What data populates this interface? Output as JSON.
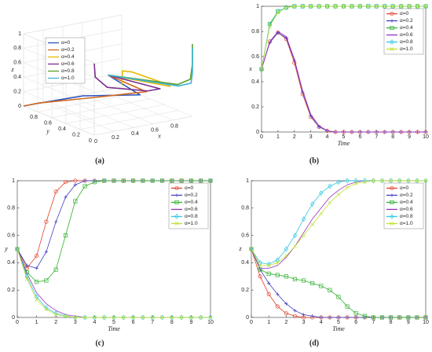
{
  "chart_data": [
    {
      "type": "line3d",
      "label": "(a)",
      "xlabel": "x",
      "ylabel": "y",
      "zlabel": "z",
      "xlim": [
        0,
        1
      ],
      "ylim": [
        0,
        1
      ],
      "zlim": [
        0,
        1
      ],
      "xticks": [
        0,
        0.2,
        0.4,
        0.6,
        0.8
      ],
      "yticks": [
        0,
        0.2,
        0.4,
        0.6,
        0.8
      ],
      "zticks": [
        0,
        0.2,
        0.4,
        0.6,
        0.8,
        1
      ],
      "grid": true,
      "legend": "upper left",
      "series": [
        {
          "name": "α=0",
          "color": "#2a52be",
          "x": [
            0.5,
            0.79,
            0.55,
            0.12,
            0.01,
            0
          ],
          "y": [
            0.5,
            0.45,
            0.92,
            1,
            1,
            1
          ],
          "z": [
            0.5,
            0.17,
            0.03,
            0,
            0,
            0
          ]
        },
        {
          "name": "α=0.2",
          "color": "#d2691e",
          "x": [
            0.5,
            0.79,
            0.57,
            0.13,
            0.01,
            0
          ],
          "y": [
            0.5,
            0.36,
            0.7,
            0.97,
            1,
            1
          ],
          "z": [
            0.5,
            0.25,
            0.1,
            0.02,
            0,
            0
          ]
        },
        {
          "name": "α=0.4",
          "color": "#e6b800",
          "x": [
            0.5,
            0.96,
            1,
            1,
            1,
            1
          ],
          "y": [
            0.5,
            0.26,
            0.35,
            0.85,
            0.99,
            1
          ],
          "z": [
            0.5,
            0.32,
            0.3,
            0.27,
            0.23,
            0.03
          ]
        },
        {
          "name": "α=0.6",
          "color": "#7b2d8e",
          "x": [
            0.5,
            0.8,
            0.58,
            0.14,
            0.01,
            0
          ],
          "y": [
            0.5,
            0.18,
            0.05,
            0.01,
            0,
            0
          ],
          "z": [
            0.5,
            0.36,
            0.44,
            0.62,
            0.8,
            0.99
          ]
        },
        {
          "name": "α=0.8",
          "color": "#5aa02c",
          "x": [
            0.5,
            0.96,
            1,
            1,
            1,
            1
          ],
          "y": [
            0.5,
            0.15,
            0.03,
            0,
            0,
            0
          ],
          "z": [
            0.5,
            0.39,
            0.5,
            0.72,
            0.91,
            1
          ]
        },
        {
          "name": "α=1.0",
          "color": "#3cb4d8",
          "x": [
            0.5,
            0.95,
            1,
            1,
            1,
            1
          ],
          "y": [
            0.5,
            0.13,
            0.02,
            0,
            0,
            0
          ],
          "z": [
            0.5,
            0.38,
            0.45,
            0.6,
            0.76,
            0.95
          ]
        }
      ]
    },
    {
      "type": "line",
      "label": "(b)",
      "xlabel": "Time",
      "ylabel": "x",
      "x": [
        0,
        0.5,
        1,
        1.5,
        2,
        2.5,
        3,
        3.5,
        4,
        4.5,
        5,
        5.5,
        6,
        6.5,
        7,
        7.5,
        8,
        8.5,
        9,
        9.5,
        10
      ],
      "xlim": [
        0,
        10
      ],
      "ylim": [
        0,
        1
      ],
      "xticks": [
        0,
        1,
        2,
        3,
        4,
        5,
        6,
        7,
        8,
        9,
        10
      ],
      "yticks": [
        0,
        0.2,
        0.4,
        0.6,
        0.8,
        1
      ],
      "legend": "upper right",
      "series": [
        {
          "name": "α=0",
          "color": "#e0402a",
          "marker": "o",
          "values": [
            0.5,
            0.72,
            0.79,
            0.74,
            0.55,
            0.3,
            0.12,
            0.04,
            0.01,
            0,
            0,
            0,
            0,
            0,
            0,
            0,
            0,
            0,
            0,
            0,
            0
          ]
        },
        {
          "name": "α=0.2",
          "color": "#4040c0",
          "marker": "+",
          "values": [
            0.5,
            0.71,
            0.79,
            0.75,
            0.57,
            0.32,
            0.13,
            0.04,
            0.01,
            0,
            0,
            0,
            0,
            0,
            0,
            0,
            0,
            0,
            0,
            0,
            0
          ]
        },
        {
          "name": "α=0.4",
          "color": "#30b030",
          "marker": "s",
          "values": [
            0.5,
            0.86,
            0.96,
            0.99,
            1,
            1,
            1,
            1,
            1,
            1,
            1,
            1,
            1,
            1,
            1,
            1,
            1,
            1,
            1,
            1,
            1
          ]
        },
        {
          "name": "α=0.6",
          "color": "#9b30c0",
          "marker": "none",
          "values": [
            0.5,
            0.72,
            0.8,
            0.76,
            0.58,
            0.33,
            0.14,
            0.05,
            0.01,
            0,
            0,
            0,
            0,
            0,
            0,
            0,
            0,
            0,
            0,
            0,
            0
          ]
        },
        {
          "name": "α=0.8",
          "color": "#30c8e0",
          "marker": "d",
          "values": [
            0.5,
            0.85,
            0.96,
            0.99,
            1,
            1,
            1,
            1,
            1,
            1,
            1,
            1,
            1,
            1,
            1,
            1,
            1,
            1,
            1,
            1,
            1
          ]
        },
        {
          "name": "α=1.0",
          "color": "#c0e030",
          "marker": "x",
          "values": [
            0.5,
            0.84,
            0.95,
            0.99,
            1,
            1,
            1,
            1,
            1,
            1,
            1,
            1,
            1,
            1,
            1,
            1,
            1,
            1,
            1,
            1,
            1
          ]
        }
      ]
    },
    {
      "type": "line",
      "label": "(c)",
      "xlabel": "Time",
      "ylabel": "y",
      "x": [
        0,
        0.5,
        1,
        1.5,
        2,
        2.5,
        3,
        3.5,
        4,
        4.5,
        5,
        5.5,
        6,
        6.5,
        7,
        7.5,
        8,
        8.5,
        9,
        9.5,
        10
      ],
      "xlim": [
        0,
        10
      ],
      "ylim": [
        0,
        1
      ],
      "xticks": [
        0,
        1,
        2,
        3,
        4,
        5,
        6,
        7,
        8,
        9,
        10
      ],
      "yticks": [
        0,
        0.2,
        0.4,
        0.6,
        0.8,
        1
      ],
      "legend": "upper right",
      "series": [
        {
          "name": "α=0",
          "color": "#e0402a",
          "marker": "o",
          "values": [
            0.5,
            0.36,
            0.45,
            0.7,
            0.92,
            0.99,
            1,
            1,
            1,
            1,
            1,
            1,
            1,
            1,
            1,
            1,
            1,
            1,
            1,
            1,
            1
          ]
        },
        {
          "name": "α=0.2",
          "color": "#4040c0",
          "marker": "+",
          "values": [
            0.5,
            0.38,
            0.36,
            0.48,
            0.7,
            0.88,
            0.97,
            1,
            1,
            1,
            1,
            1,
            1,
            1,
            1,
            1,
            1,
            1,
            1,
            1,
            1
          ]
        },
        {
          "name": "α=0.4",
          "color": "#30b030",
          "marker": "s",
          "values": [
            0.5,
            0.33,
            0.26,
            0.27,
            0.35,
            0.6,
            0.85,
            0.96,
            0.99,
            1,
            1,
            1,
            1,
            1,
            1,
            1,
            1,
            1,
            1,
            1,
            1
          ]
        },
        {
          "name": "α=0.6",
          "color": "#9b30c0",
          "marker": "none",
          "values": [
            0.5,
            0.32,
            0.18,
            0.1,
            0.05,
            0.02,
            0.01,
            0,
            0,
            0,
            0,
            0,
            0,
            0,
            0,
            0,
            0,
            0,
            0,
            0,
            0
          ]
        },
        {
          "name": "α=0.8",
          "color": "#30c8e0",
          "marker": "d",
          "values": [
            0.5,
            0.3,
            0.15,
            0.07,
            0.03,
            0.01,
            0,
            0,
            0,
            0,
            0,
            0,
            0,
            0,
            0,
            0,
            0,
            0,
            0,
            0,
            0
          ]
        },
        {
          "name": "α=1.0",
          "color": "#c0e030",
          "marker": "x",
          "values": [
            0.5,
            0.28,
            0.13,
            0.06,
            0.02,
            0.01,
            0,
            0,
            0,
            0,
            0,
            0,
            0,
            0,
            0,
            0,
            0,
            0,
            0,
            0,
            0
          ]
        }
      ]
    },
    {
      "type": "line",
      "label": "(d)",
      "xlabel": "Time",
      "ylabel": "z",
      "x": [
        0,
        0.5,
        1,
        1.5,
        2,
        2.5,
        3,
        3.5,
        4,
        4.5,
        5,
        5.5,
        6,
        6.5,
        7,
        7.5,
        8,
        8.5,
        9,
        9.5,
        10
      ],
      "xlim": [
        0,
        10
      ],
      "ylim": [
        0,
        1
      ],
      "xticks": [
        0,
        1,
        2,
        3,
        4,
        5,
        6,
        7,
        8,
        9,
        10
      ],
      "yticks": [
        0,
        0.2,
        0.4,
        0.6,
        0.8,
        1
      ],
      "legend": "upper right",
      "series": [
        {
          "name": "α=0",
          "color": "#e0402a",
          "marker": "o",
          "values": [
            0.5,
            0.3,
            0.17,
            0.08,
            0.03,
            0.01,
            0,
            0,
            0,
            0,
            0,
            0,
            0,
            0,
            0,
            0,
            0,
            0,
            0,
            0,
            0
          ]
        },
        {
          "name": "α=0.2",
          "color": "#4040c0",
          "marker": "+",
          "values": [
            0.5,
            0.35,
            0.25,
            0.17,
            0.1,
            0.05,
            0.02,
            0.01,
            0,
            0,
            0,
            0,
            0,
            0,
            0,
            0,
            0,
            0,
            0,
            0,
            0
          ]
        },
        {
          "name": "α=0.4",
          "color": "#30b030",
          "marker": "s",
          "values": [
            0.5,
            0.35,
            0.32,
            0.31,
            0.3,
            0.28,
            0.27,
            0.25,
            0.23,
            0.2,
            0.15,
            0.08,
            0.03,
            0.01,
            0,
            0,
            0,
            0,
            0,
            0,
            0
          ]
        },
        {
          "name": "α=0.6",
          "color": "#9b30c0",
          "marker": "none",
          "values": [
            0.5,
            0.36,
            0.36,
            0.38,
            0.44,
            0.52,
            0.62,
            0.72,
            0.8,
            0.88,
            0.93,
            0.97,
            0.99,
            1,
            1,
            1,
            1,
            1,
            1,
            1,
            1
          ]
        },
        {
          "name": "α=0.8",
          "color": "#30c8e0",
          "marker": "d",
          "values": [
            0.5,
            0.4,
            0.39,
            0.42,
            0.5,
            0.6,
            0.72,
            0.83,
            0.91,
            0.96,
            0.99,
            1,
            1,
            1,
            1,
            1,
            1,
            1,
            1,
            1,
            1
          ]
        },
        {
          "name": "α=1.0",
          "color": "#c0e030",
          "marker": "x",
          "values": [
            0.5,
            0.38,
            0.38,
            0.4,
            0.45,
            0.52,
            0.6,
            0.68,
            0.76,
            0.84,
            0.9,
            0.95,
            0.98,
            0.99,
            1,
            1,
            1,
            1,
            1,
            1,
            1
          ]
        }
      ]
    }
  ]
}
